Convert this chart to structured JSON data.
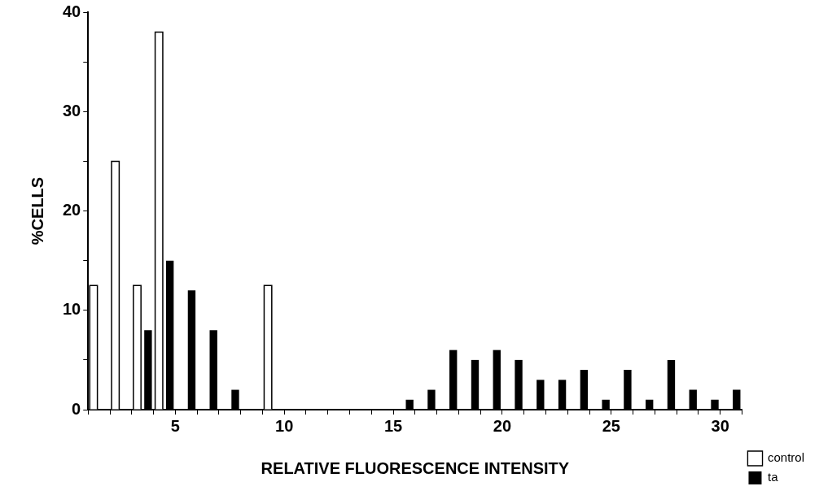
{
  "chart_data": {
    "type": "histogram",
    "xlabel": "RELATIVE FLUORESCENCE INTENSITY",
    "ylabel": "%CELLS",
    "bins": [
      1,
      2,
      3,
      4,
      5,
      6,
      7,
      8,
      9,
      10,
      11,
      12,
      13,
      14,
      15,
      16,
      17,
      18,
      19,
      20,
      21,
      22,
      23,
      24,
      25,
      26,
      27,
      28,
      29,
      30,
      31
    ],
    "series": [
      {
        "name": "control",
        "color": "#ffffff",
        "values": [
          12.5,
          25,
          12.5,
          38,
          0,
          0,
          0,
          0,
          12.5,
          0,
          0,
          0,
          0,
          0,
          0,
          0,
          0,
          0,
          0,
          0,
          0,
          0,
          0,
          0,
          0,
          0,
          0,
          0,
          0,
          0
        ]
      },
      {
        "name": "ta",
        "color": "#000000",
        "values": [
          0,
          0,
          8,
          15,
          12,
          8,
          2,
          0,
          0,
          0,
          0,
          0,
          0,
          0,
          1,
          2,
          6,
          5,
          6,
          5,
          3,
          3,
          4,
          1,
          4,
          1,
          5,
          2,
          1,
          2
        ]
      }
    ],
    "xlim": [
      1,
      31
    ],
    "xticks": [
      {
        "value": 1,
        "label": null
      },
      {
        "value": 2,
        "label": null
      },
      {
        "value": 3,
        "label": null
      },
      {
        "value": 4,
        "label": null
      },
      5,
      {
        "value": 6,
        "label": null
      },
      {
        "value": 7,
        "label": null
      },
      {
        "value": 8,
        "label": null
      },
      {
        "value": 9,
        "label": null
      },
      10,
      {
        "value": 11,
        "label": null
      },
      {
        "value": 12,
        "label": null
      },
      {
        "value": 13,
        "label": null
      },
      {
        "value": 14,
        "label": null
      },
      15,
      {
        "value": 16,
        "label": null
      },
      {
        "value": 17,
        "label": null
      },
      {
        "value": 18,
        "label": null
      },
      {
        "value": 19,
        "label": null
      },
      20,
      {
        "value": 21,
        "label": null
      },
      {
        "value": 22,
        "label": null
      },
      {
        "value": 23,
        "label": null
      },
      {
        "value": 24,
        "label": null
      },
      25,
      {
        "value": 26,
        "label": null
      },
      {
        "value": 27,
        "label": null
      },
      {
        "value": 28,
        "label": null
      },
      {
        "value": 29,
        "label": null
      },
      30,
      {
        "value": 31,
        "label": null
      }
    ],
    "ylim": [
      0,
      40
    ],
    "yticks": [
      0,
      {
        "value": 5,
        "label": null
      },
      10,
      {
        "value": 15,
        "label": null
      },
      20,
      {
        "value": 25,
        "label": null
      },
      30,
      {
        "value": 35,
        "label": null
      },
      40
    ],
    "grid": false,
    "legend": "right"
  }
}
